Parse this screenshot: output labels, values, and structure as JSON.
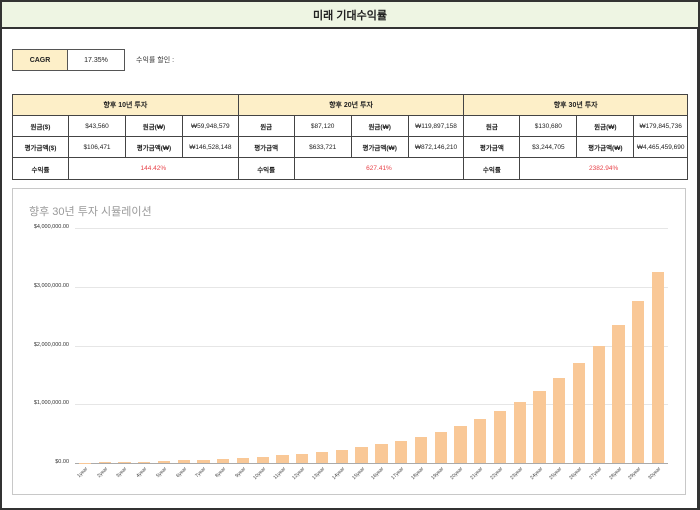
{
  "header": {
    "title": "미래 기대수익률"
  },
  "cagr": {
    "label": "CAGR",
    "value": "17.35%",
    "note": "수익률 할인 :"
  },
  "summary": [
    {
      "title": "향후 10년 투자",
      "rows": [
        {
          "k1": "원금($)",
          "v1": "$43,560",
          "k2": "원금(₩)",
          "v2": "₩59,948,579"
        },
        {
          "k1": "평가금액($)",
          "v1": "$106,471",
          "k2": "평가금액(₩)",
          "v2": "₩146,528,148"
        }
      ],
      "return_label": "수익률",
      "return_value": "144.42%"
    },
    {
      "title": "향후 20년 투자",
      "rows": [
        {
          "k1": "원금",
          "v1": "$87,120",
          "k2": "원금(₩)",
          "v2": "₩119,897,158"
        },
        {
          "k1": "평가금액",
          "v1": "$633,721",
          "k2": "평가금액(₩)",
          "v2": "₩872,146,210"
        }
      ],
      "return_label": "수익률",
      "return_value": "627.41%"
    },
    {
      "title": "향후 30년 투자",
      "rows": [
        {
          "k1": "원금",
          "v1": "$130,680",
          "k2": "원금(₩)",
          "v2": "₩179,845,736"
        },
        {
          "k1": "평가금액",
          "v1": "$3,244,705",
          "k2": "평가금액(₩)",
          "v2": "₩4,465,459,690"
        }
      ],
      "return_label": "수익률",
      "return_value": "2382.94%"
    }
  ],
  "colors": {
    "title_bg": "#eef5e3",
    "label_bg": "#fdefc8",
    "return_text": "#e8434a",
    "bar": "#f9c897"
  },
  "chart_data": {
    "type": "bar",
    "title": "향후 30년 투자 시뮬레이션",
    "xlabel": "",
    "ylabel": "",
    "ylim": [
      0,
      4000000
    ],
    "yticks": [
      "$0.00",
      "$1,000,000.00",
      "$2,000,000.00",
      "$3,000,000.00",
      "$4,000,000.00"
    ],
    "grid": true,
    "legend": "none",
    "categories": [
      "1year",
      "2year",
      "3year",
      "4year",
      "5year",
      "6year",
      "7year",
      "8year",
      "9year",
      "10year",
      "11year",
      "12year",
      "13year",
      "14year",
      "15year",
      "16year",
      "17year",
      "18year",
      "19year",
      "20year",
      "21year",
      "22year",
      "23year",
      "24year",
      "25year",
      "26year",
      "27year",
      "28year",
      "29year",
      "30year"
    ],
    "values": [
      4700,
      10200,
      16700,
      24300,
      33200,
      43600,
      55900,
      70300,
      87200,
      106471,
      129000,
      155000,
      186000,
      223000,
      266000,
      317000,
      377000,
      447000,
      530000,
      633721,
      745000,
      880000,
      1040000,
      1225000,
      1440000,
      1700000,
      2000000,
      2350000,
      2760000,
      3244705
    ]
  }
}
